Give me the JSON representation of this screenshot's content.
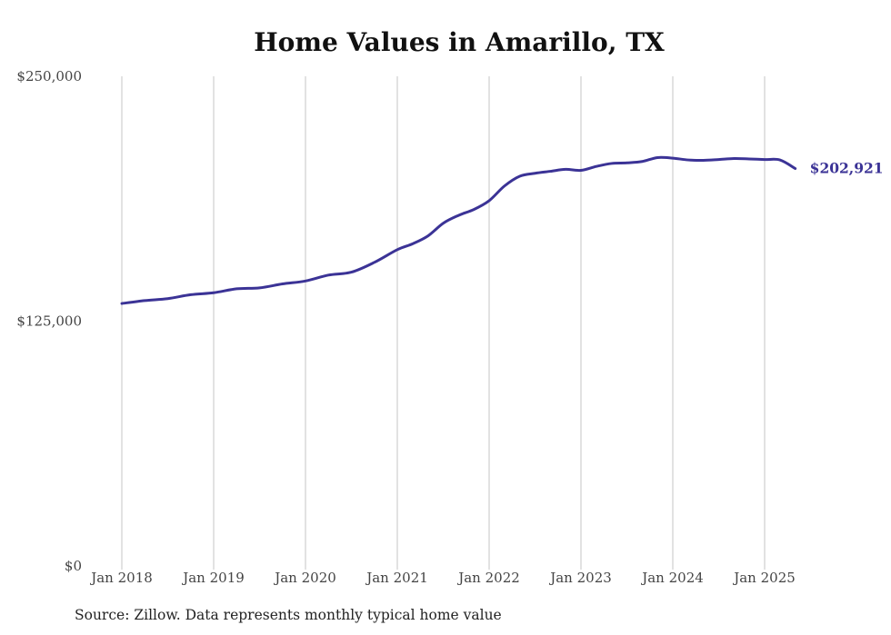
{
  "chart_data": {
    "type": "line",
    "title": "Home Values in Amarillo, TX",
    "source_note": "Source: Zillow. Data represents monthly typical home value",
    "xlabel": "",
    "ylabel": "",
    "ylim": [
      0,
      250000
    ],
    "y_ticks": [
      0,
      125000,
      250000
    ],
    "y_tick_labels": [
      "$0",
      "$125,000",
      "$250,000"
    ],
    "x_ticks": [
      "2018-01",
      "2019-01",
      "2020-01",
      "2021-01",
      "2022-01",
      "2023-01",
      "2024-01",
      "2025-01"
    ],
    "x_tick_labels": [
      "Jan 2018",
      "Jan 2019",
      "Jan 2020",
      "Jan 2021",
      "Jan 2022",
      "Jan 2023",
      "Jan 2024",
      "Jan 2025"
    ],
    "grid": "vertical",
    "line_color": "#3b3396",
    "end_label": "$202,921",
    "series": [
      {
        "x": [
          "2018-01",
          "2018-04",
          "2018-07",
          "2018-10",
          "2019-01",
          "2019-04",
          "2019-07",
          "2019-10",
          "2020-01",
          "2020-04",
          "2020-07",
          "2020-10",
          "2021-01",
          "2021-03",
          "2021-05",
          "2021-07",
          "2021-09",
          "2021-11",
          "2022-01",
          "2022-03",
          "2022-05",
          "2022-07",
          "2022-09",
          "2022-11",
          "2023-01",
          "2023-03",
          "2023-05",
          "2023-07",
          "2023-09",
          "2023-11",
          "2024-01",
          "2024-03",
          "2024-05",
          "2024-07",
          "2024-09",
          "2024-11",
          "2025-01",
          "2025-03",
          "2025-05"
        ],
        "values": [
          134000,
          135500,
          136500,
          138500,
          139500,
          141500,
          142000,
          144000,
          145500,
          148500,
          150000,
          155000,
          161500,
          164500,
          168500,
          175000,
          179000,
          182000,
          186500,
          194000,
          199000,
          200500,
          201500,
          202500,
          202000,
          204000,
          205500,
          205800,
          206500,
          208500,
          208200,
          207300,
          207100,
          207500,
          208000,
          207800,
          207500,
          207300,
          202921
        ]
      }
    ]
  }
}
